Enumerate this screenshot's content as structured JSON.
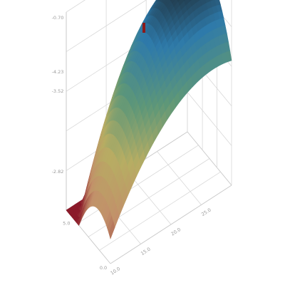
{
  "chart_data": {
    "type": "surface",
    "title": "",
    "xlabel": "",
    "ylabel": "",
    "zlabel": "",
    "x_ticks": [
      "0.0",
      "5.0"
    ],
    "y_ticks": [
      "10.0",
      "15.0",
      "20.0",
      "25.0"
    ],
    "z_ticks": [
      "-2.82",
      "-3.52",
      "-4.23",
      "-0.70"
    ],
    "xlim": [
      0,
      6
    ],
    "ylim": [
      10,
      30
    ],
    "zlim": [
      -3.5,
      0
    ],
    "grid": true,
    "colormap": [
      "#8b1a2a",
      "#c2906a",
      "#b7ad63",
      "#5e9778",
      "#2e7aaa",
      "#1c1f22"
    ]
  }
}
